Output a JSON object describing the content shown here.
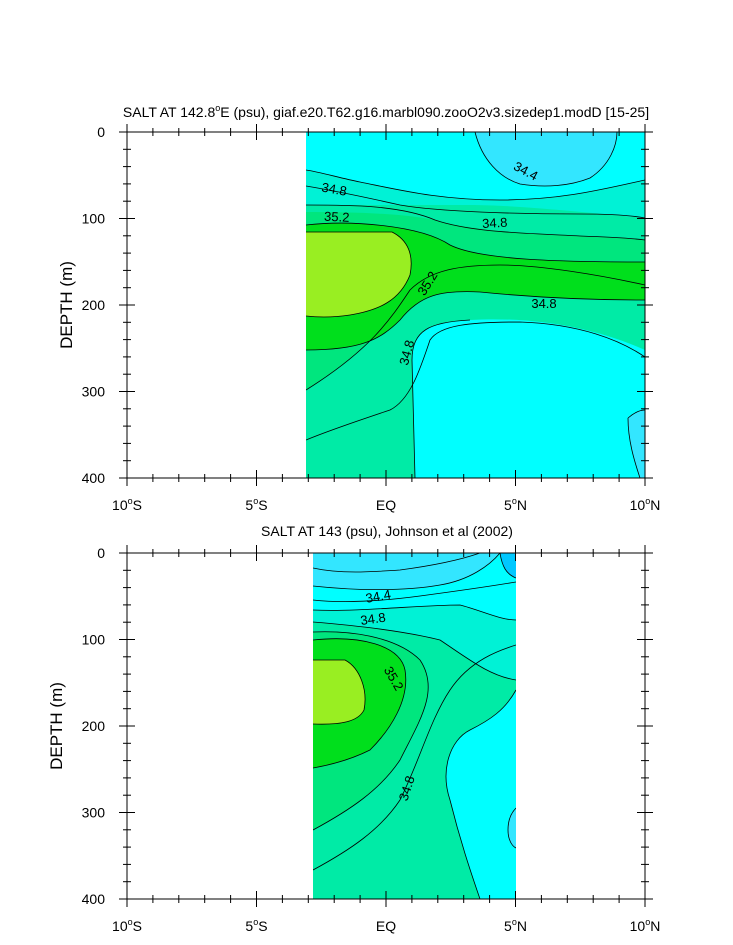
{
  "chart_data": [
    {
      "type": "contour",
      "title": "SALT AT 142.8°E (psu), giaf.e20.T62.g16.marbl090.zooO2v3.sizedep1.modD [15-25]",
      "title_parts": [
        "SALT AT 142.8",
        "o",
        "E (psu), giaf.e20.T62.g16.marbl090.zooO2v3.sizedep1.modD [15-25]"
      ],
      "xlabel": "",
      "ylabel": "DEPTH (m)",
      "xlim": [
        -10,
        10
      ],
      "ylim": [
        400,
        0
      ],
      "yticks": [
        "0",
        "100",
        "200",
        "300",
        "400"
      ],
      "xticks": [
        {
          "num": "10",
          "deg": "o",
          "hem": "S"
        },
        {
          "num": "5",
          "deg": "o",
          "hem": "S"
        },
        {
          "num": "EQ",
          "deg": "",
          "hem": ""
        },
        {
          "num": "5",
          "deg": "o",
          "hem": "N"
        },
        {
          "num": "10",
          "deg": "o",
          "hem": "N"
        }
      ],
      "data_extent": {
        "lat": [
          -2.9,
          10
        ],
        "depth": [
          0,
          400
        ]
      },
      "levels": [
        34.2,
        34.4,
        34.6,
        34.8,
        35.0,
        35.2,
        35.4
      ],
      "contour_labels": [
        {
          "text": "34.4",
          "lat": 5.4,
          "depth": 45,
          "angle": 28
        },
        {
          "text": "34.8",
          "lat": -2.0,
          "depth": 66,
          "angle": 10
        },
        {
          "text": "34.8",
          "lat": 4.2,
          "depth": 105,
          "angle": -3
        },
        {
          "text": "35.2",
          "lat": -1.9,
          "depth": 98,
          "angle": 3
        },
        {
          "text": "35.2",
          "lat": 1.6,
          "depth": 175,
          "angle": -58
        },
        {
          "text": "34.8",
          "lat": 6.1,
          "depth": 198,
          "angle": 0
        },
        {
          "text": "34.8",
          "lat": 0.8,
          "depth": 255,
          "angle": -75
        }
      ],
      "color_hex": {
        "lt34.2": "#00c8ff",
        "34.2-34.4": "#33e6ff",
        "34.4-34.6": "#00ffff",
        "34.6-34.8": "#00f2d6",
        "34.8-35.0": "#00eba6",
        "35.0-35.2": "#00e67e",
        "35.2-35.4": "#00df1c",
        "gt35.4": "#99ee22"
      }
    },
    {
      "type": "contour",
      "title": "SALT AT 143 (psu), Johnson et al (2002)",
      "xlabel": "",
      "ylabel": "DEPTH (m)",
      "xlim": [
        -10,
        10
      ],
      "ylim": [
        400,
        0
      ],
      "yticks": [
        "0",
        "100",
        "200",
        "300",
        "400"
      ],
      "xticks": [
        {
          "num": "10",
          "deg": "o",
          "hem": "S"
        },
        {
          "num": "5",
          "deg": "o",
          "hem": "S"
        },
        {
          "num": "EQ",
          "deg": "",
          "hem": ""
        },
        {
          "num": "5",
          "deg": "o",
          "hem": "N"
        },
        {
          "num": "10",
          "deg": "o",
          "hem": "N"
        }
      ],
      "data_extent": {
        "lat": [
          -2.7,
          5
        ],
        "depth": [
          0,
          400
        ]
      },
      "levels": [
        34.2,
        34.4,
        34.6,
        34.8,
        35.0,
        35.2,
        35.4
      ],
      "contour_labels": [
        {
          "text": "34.4",
          "lat": -0.3,
          "depth": 50,
          "angle": -10
        },
        {
          "text": "34.8",
          "lat": -0.5,
          "depth": 76,
          "angle": -8
        },
        {
          "text": "35.2",
          "lat": 0.3,
          "depth": 145,
          "angle": 60
        },
        {
          "text": "34.8",
          "lat": 0.8,
          "depth": 272,
          "angle": -72
        }
      ]
    }
  ]
}
